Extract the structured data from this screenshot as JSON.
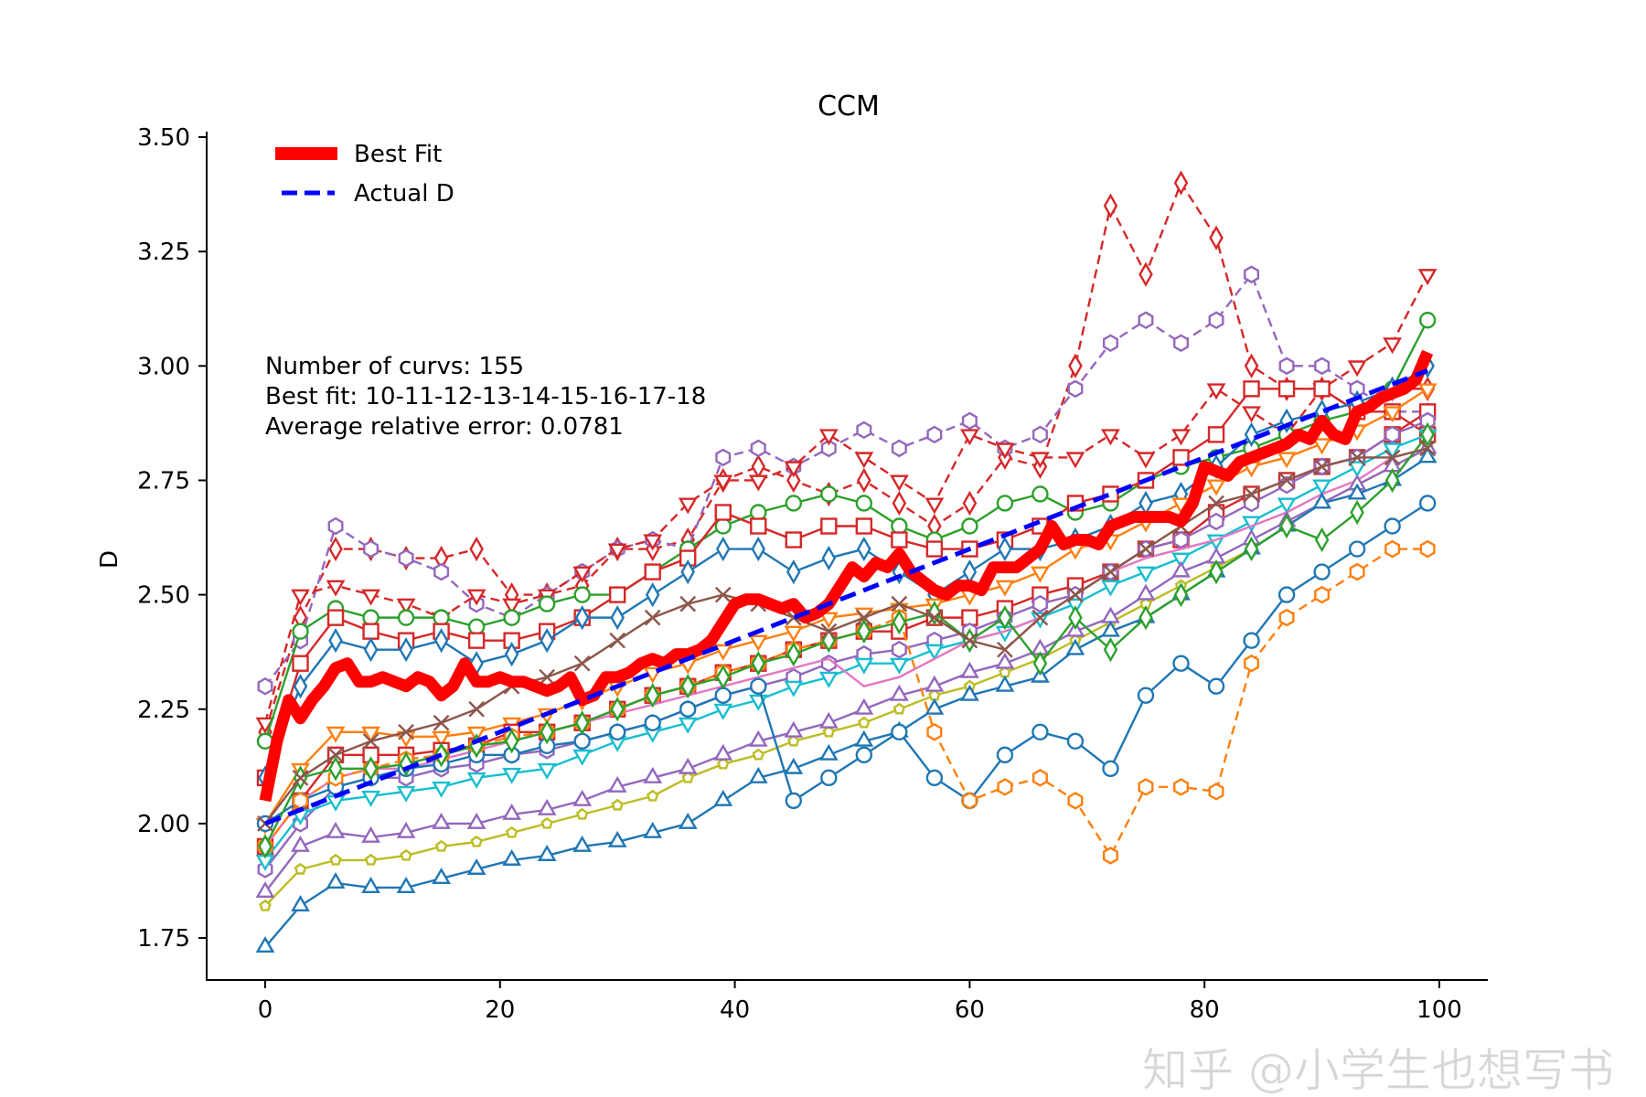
{
  "chart_data": {
    "type": "line",
    "title": "CCM",
    "xlabel": "",
    "ylabel": "D",
    "xlim": [
      -5,
      104
    ],
    "ylim": [
      1.7,
      3.51
    ],
    "x_ticks": [
      "0",
      "20",
      "40",
      "60",
      "80",
      "100"
    ],
    "y_ticks": [
      "1.75",
      "2.00",
      "2.25",
      "2.50",
      "2.75",
      "3.00",
      "3.25",
      "3.50"
    ],
    "grid": false,
    "legend_position": "top-left",
    "legend": [
      {
        "label": "Best Fit",
        "color": "#ff0000",
        "style": "solid-thick"
      },
      {
        "label": "Actual D",
        "color": "#0000ff",
        "style": "dashed"
      }
    ],
    "annotation": [
      "Number of curvs: 155",
      "Best fit: 10-11-12-13-14-15-16-17-18",
      "Average relative error: 0.0781"
    ],
    "best_fit": {
      "name": "Best Fit",
      "color": "#ff0000",
      "x_start": 0,
      "x_step": 1,
      "values": [
        2.05,
        2.18,
        2.27,
        2.23,
        2.27,
        2.3,
        2.34,
        2.35,
        2.31,
        2.31,
        2.32,
        2.31,
        2.3,
        2.32,
        2.31,
        2.28,
        2.3,
        2.35,
        2.31,
        2.31,
        2.32,
        2.31,
        2.31,
        2.3,
        2.29,
        2.3,
        2.32,
        2.27,
        2.28,
        2.32,
        2.32,
        2.33,
        2.35,
        2.36,
        2.35,
        2.37,
        2.37,
        2.38,
        2.4,
        2.44,
        2.48,
        2.49,
        2.49,
        2.48,
        2.47,
        2.48,
        2.45,
        2.46,
        2.48,
        2.52,
        2.56,
        2.54,
        2.57,
        2.56,
        2.59,
        2.55,
        2.53,
        2.51,
        2.5,
        2.52,
        2.52,
        2.51,
        2.56,
        2.56,
        2.56,
        2.58,
        2.6,
        2.65,
        2.61,
        2.62,
        2.62,
        2.61,
        2.65,
        2.66,
        2.67,
        2.67,
        2.67,
        2.67,
        2.66,
        2.7,
        2.78,
        2.77,
        2.76,
        2.79,
        2.8,
        2.81,
        2.82,
        2.83,
        2.85,
        2.84,
        2.88,
        2.85,
        2.84,
        2.9,
        2.91,
        2.93,
        2.94,
        2.95,
        2.97,
        3.03
      ]
    },
    "actual_d": {
      "name": "Actual D",
      "color": "#0000ff",
      "x": [
        0,
        99
      ],
      "y": [
        2.0,
        2.99
      ]
    },
    "curves_x_start": 0,
    "curves_x_step": 3,
    "curves": [
      {
        "color": "#d62728",
        "marker": "diamond",
        "dashed": true,
        "values": [
          2.2,
          2.45,
          2.6,
          2.6,
          2.58,
          2.58,
          2.6,
          2.5,
          2.5,
          2.52,
          2.6,
          2.6,
          2.62,
          2.75,
          2.78,
          2.75,
          2.72,
          2.75,
          2.7,
          2.65,
          2.7,
          2.8,
          2.78,
          3.0,
          3.35,
          3.2,
          3.4,
          3.28,
          3.0,
          2.95,
          2.95,
          2.9,
          2.95,
          2.95
        ]
      },
      {
        "color": "#9467bd",
        "marker": "hexagon",
        "dashed": true,
        "values": [
          2.3,
          2.4,
          2.65,
          2.6,
          2.58,
          2.55,
          2.48,
          2.45,
          2.5,
          2.55,
          2.6,
          2.62,
          2.6,
          2.8,
          2.82,
          2.78,
          2.82,
          2.86,
          2.82,
          2.85,
          2.88,
          2.82,
          2.85,
          2.95,
          3.05,
          3.1,
          3.05,
          3.1,
          3.2,
          3.0,
          3.0,
          2.95,
          2.9,
          2.9
        ]
      },
      {
        "color": "#d62728",
        "marker": "triangle-down",
        "dashed": true,
        "values": [
          2.22,
          2.5,
          2.52,
          2.5,
          2.48,
          2.45,
          2.5,
          2.48,
          2.5,
          2.55,
          2.6,
          2.62,
          2.7,
          2.75,
          2.75,
          2.78,
          2.85,
          2.8,
          2.75,
          2.7,
          2.85,
          2.82,
          2.8,
          2.8,
          2.85,
          2.8,
          2.85,
          2.95,
          2.9,
          2.85,
          2.95,
          3.0,
          3.05,
          3.2
        ]
      },
      {
        "color": "#2ca02c",
        "marker": "circle",
        "dashed": false,
        "values": [
          2.18,
          2.42,
          2.47,
          2.45,
          2.45,
          2.45,
          2.43,
          2.45,
          2.48,
          2.5,
          2.5,
          2.55,
          2.6,
          2.65,
          2.68,
          2.7,
          2.72,
          2.7,
          2.65,
          2.62,
          2.65,
          2.7,
          2.72,
          2.68,
          2.7,
          2.75,
          2.78,
          2.8,
          2.82,
          2.85,
          2.88,
          2.9,
          2.95,
          3.1
        ]
      },
      {
        "color": "#d62728",
        "marker": "square",
        "dashed": false,
        "values": [
          2.1,
          2.35,
          2.45,
          2.42,
          2.4,
          2.42,
          2.4,
          2.4,
          2.42,
          2.45,
          2.5,
          2.55,
          2.58,
          2.68,
          2.65,
          2.62,
          2.65,
          2.65,
          2.62,
          2.6,
          2.6,
          2.62,
          2.65,
          2.7,
          2.72,
          2.75,
          2.8,
          2.85,
          2.95,
          2.95,
          2.95,
          2.9,
          2.9,
          2.85
        ]
      },
      {
        "color": "#1f77b4",
        "marker": "diamond",
        "dashed": false,
        "values": [
          2.1,
          2.3,
          2.4,
          2.38,
          2.38,
          2.4,
          2.35,
          2.37,
          2.4,
          2.45,
          2.45,
          2.5,
          2.55,
          2.6,
          2.6,
          2.55,
          2.58,
          2.6,
          2.55,
          2.5,
          2.55,
          2.6,
          2.6,
          2.62,
          2.65,
          2.7,
          2.72,
          2.78,
          2.85,
          2.88,
          2.9,
          2.92,
          2.95,
          3.0
        ]
      },
      {
        "color": "#ff7f0e",
        "marker": "triangle-down",
        "dashed": false,
        "values": [
          2.0,
          2.12,
          2.2,
          2.2,
          2.19,
          2.19,
          2.2,
          2.22,
          2.24,
          2.27,
          2.3,
          2.33,
          2.35,
          2.38,
          2.4,
          2.42,
          2.45,
          2.46,
          2.47,
          2.48,
          2.5,
          2.52,
          2.55,
          2.6,
          2.62,
          2.66,
          2.7,
          2.74,
          2.78,
          2.8,
          2.83,
          2.86,
          2.9,
          2.95
        ]
      },
      {
        "color": "#d62728",
        "marker": "square",
        "dashed": false,
        "values": [
          1.95,
          2.05,
          2.15,
          2.15,
          2.15,
          2.16,
          2.17,
          2.2,
          2.2,
          2.22,
          2.25,
          2.28,
          2.3,
          2.33,
          2.35,
          2.38,
          2.4,
          2.42,
          2.42,
          2.45,
          2.45,
          2.47,
          2.5,
          2.52,
          2.55,
          2.6,
          2.62,
          2.68,
          2.72,
          2.75,
          2.78,
          2.8,
          2.85,
          2.9
        ]
      },
      {
        "color": "#9467bd",
        "marker": "hexagon",
        "dashed": false,
        "values": [
          1.9,
          2.0,
          2.08,
          2.1,
          2.1,
          2.12,
          2.13,
          2.15,
          2.16,
          2.18,
          2.2,
          2.22,
          2.25,
          2.28,
          2.3,
          2.32,
          2.35,
          2.37,
          2.38,
          2.4,
          2.42,
          2.45,
          2.48,
          2.5,
          2.55,
          2.6,
          2.62,
          2.66,
          2.7,
          2.74,
          2.78,
          2.8,
          2.85,
          2.88
        ]
      },
      {
        "color": "#17becf",
        "marker": "triangle-down",
        "dashed": false,
        "values": [
          1.92,
          2.02,
          2.05,
          2.06,
          2.07,
          2.08,
          2.1,
          2.11,
          2.12,
          2.15,
          2.18,
          2.2,
          2.22,
          2.25,
          2.27,
          2.3,
          2.32,
          2.35,
          2.35,
          2.38,
          2.4,
          2.42,
          2.45,
          2.48,
          2.52,
          2.55,
          2.58,
          2.62,
          2.66,
          2.7,
          2.74,
          2.78,
          2.82,
          2.85
        ]
      },
      {
        "color": "#e377c2",
        "marker": "none",
        "dashed": false,
        "values": [
          1.95,
          2.05,
          2.1,
          2.12,
          2.12,
          2.14,
          2.16,
          2.18,
          2.2,
          2.22,
          2.24,
          2.26,
          2.28,
          2.3,
          2.32,
          2.34,
          2.36,
          2.3,
          2.32,
          2.36,
          2.4,
          2.42,
          2.45,
          2.5,
          2.55,
          2.58,
          2.6,
          2.62,
          2.65,
          2.68,
          2.72,
          2.75,
          2.8,
          2.82
        ]
      },
      {
        "color": "#bcbd22",
        "marker": "pentagon",
        "dashed": false,
        "values": [
          1.82,
          1.9,
          1.92,
          1.92,
          1.93,
          1.95,
          1.96,
          1.98,
          2.0,
          2.02,
          2.04,
          2.06,
          2.1,
          2.13,
          2.15,
          2.18,
          2.2,
          2.22,
          2.25,
          2.28,
          2.3,
          2.33,
          2.36,
          2.4,
          2.44,
          2.48,
          2.52,
          2.56,
          2.6,
          2.65,
          2.7,
          2.74,
          2.78,
          2.82
        ]
      },
      {
        "color": "#9467bd",
        "marker": "triangle-up",
        "dashed": false,
        "values": [
          1.85,
          1.95,
          1.98,
          1.97,
          1.98,
          2.0,
          2.0,
          2.02,
          2.03,
          2.05,
          2.08,
          2.1,
          2.12,
          2.15,
          2.18,
          2.2,
          2.22,
          2.25,
          2.28,
          2.3,
          2.33,
          2.35,
          2.38,
          2.42,
          2.45,
          2.5,
          2.55,
          2.58,
          2.62,
          2.66,
          2.7,
          2.74,
          2.78,
          2.82
        ]
      },
      {
        "color": "#1f77b4",
        "marker": "triangle-up",
        "dashed": false,
        "values": [
          1.73,
          1.82,
          1.87,
          1.86,
          1.86,
          1.88,
          1.9,
          1.92,
          1.93,
          1.95,
          1.96,
          1.98,
          2.0,
          2.05,
          2.1,
          2.12,
          2.15,
          2.18,
          2.2,
          2.25,
          2.28,
          2.3,
          2.32,
          2.38,
          2.42,
          2.45,
          2.5,
          2.55,
          2.6,
          2.65,
          2.7,
          2.72,
          2.75,
          2.8
        ]
      },
      {
        "color": "#1f77b4",
        "marker": "circle",
        "dashed": false,
        "values": [
          2.0,
          2.05,
          2.08,
          2.1,
          2.12,
          2.13,
          2.15,
          2.15,
          2.17,
          2.18,
          2.2,
          2.22,
          2.25,
          2.28,
          2.3,
          2.05,
          2.1,
          2.15,
          2.2,
          2.1,
          2.05,
          2.15,
          2.2,
          2.18,
          2.12,
          2.28,
          2.35,
          2.3,
          2.4,
          2.5,
          2.55,
          2.6,
          2.65,
          2.7
        ]
      },
      {
        "color": "#ff7f0e",
        "marker": "hexagon",
        "dashed": true,
        "values": [
          1.95,
          2.05,
          2.1,
          2.12,
          2.14,
          2.15,
          2.17,
          2.19,
          2.2,
          2.22,
          2.25,
          2.28,
          2.3,
          2.33,
          2.35,
          2.38,
          2.4,
          2.42,
          2.45,
          2.2,
          2.05,
          2.08,
          2.1,
          2.05,
          1.93,
          2.08,
          2.08,
          2.07,
          2.35,
          2.45,
          2.5,
          2.55,
          2.6,
          2.6
        ]
      },
      {
        "color": "#2ca02c",
        "marker": "diamond",
        "dashed": false,
        "values": [
          1.95,
          2.1,
          2.12,
          2.12,
          2.13,
          2.15,
          2.17,
          2.18,
          2.2,
          2.22,
          2.25,
          2.28,
          2.3,
          2.32,
          2.35,
          2.37,
          2.4,
          2.42,
          2.44,
          2.46,
          2.4,
          2.45,
          2.35,
          2.45,
          2.38,
          2.45,
          2.5,
          2.55,
          2.6,
          2.65,
          2.62,
          2.68,
          2.75,
          2.85
        ]
      },
      {
        "color": "#8c564b",
        "marker": "x",
        "dashed": false,
        "values": [
          2.0,
          2.1,
          2.15,
          2.18,
          2.2,
          2.22,
          2.25,
          2.3,
          2.32,
          2.35,
          2.4,
          2.45,
          2.48,
          2.5,
          2.48,
          2.45,
          2.42,
          2.45,
          2.48,
          2.45,
          2.4,
          2.38,
          2.45,
          2.5,
          2.55,
          2.6,
          2.65,
          2.7,
          2.72,
          2.75,
          2.78,
          2.8,
          2.8,
          2.82
        ]
      }
    ]
  },
  "watermark": "知乎 @小学生也想写书"
}
